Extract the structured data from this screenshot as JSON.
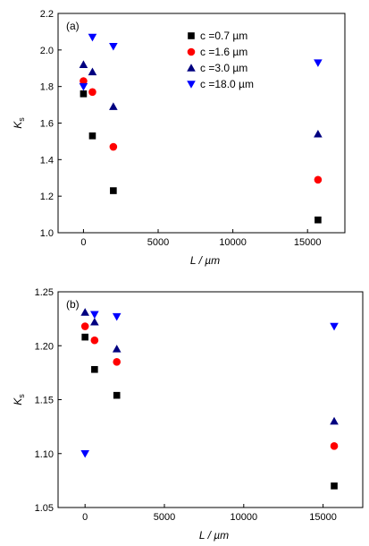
{
  "colors": {
    "c07": "#000000",
    "c16": "#ff0000",
    "c30": "#000080",
    "c180": "#0000ff"
  },
  "chart_data": [
    {
      "type": "scatter",
      "panel_label": "(a)",
      "xlabel": "L / µm",
      "ylabel": "K",
      "ylabel_subscript": "s",
      "xlim": [
        -1700,
        17500
      ],
      "ylim": [
        1.0,
        2.2
      ],
      "xticks": [
        0,
        5000,
        10000,
        15000
      ],
      "xtick_labels": [
        "0",
        "5000",
        "10000",
        "15000"
      ],
      "yticks": [
        1.0,
        1.2,
        1.4,
        1.6,
        1.8,
        2.0,
        2.2
      ],
      "ytick_labels": [
        "1.0",
        "1.2",
        "1.4",
        "1.6",
        "1.8",
        "2.0",
        "2.2"
      ],
      "grid": false,
      "legend_position": "top-center",
      "series": [
        {
          "name": "c =0.7 µm",
          "marker": "square",
          "color": "#000000",
          "x": [
            0,
            600,
            2000,
            15700
          ],
          "y": [
            1.76,
            1.53,
            1.23,
            1.07
          ]
        },
        {
          "name": "c =1.6 µm",
          "marker": "circle",
          "color": "#ff0000",
          "x": [
            0,
            600,
            2000,
            15700
          ],
          "y": [
            1.83,
            1.77,
            1.47,
            1.29
          ]
        },
        {
          "name": "c =3.0 µm",
          "marker": "triangle-up",
          "color": "#000080",
          "x": [
            0,
            600,
            2000,
            15700
          ],
          "y": [
            1.92,
            1.88,
            1.69,
            1.54
          ]
        },
        {
          "name": "c =18.0 µm",
          "marker": "triangle-down",
          "color": "#0000ff",
          "x": [
            0,
            600,
            2000,
            15700
          ],
          "y": [
            1.8,
            2.07,
            2.02,
            1.93
          ]
        }
      ]
    },
    {
      "type": "scatter",
      "panel_label": "(b)",
      "xlabel": "L / µm",
      "ylabel": "K",
      "ylabel_subscript": "s",
      "xlim": [
        -1700,
        17500
      ],
      "ylim": [
        1.05,
        1.25
      ],
      "xticks": [
        0,
        5000,
        10000,
        15000
      ],
      "xtick_labels": [
        "0",
        "5000",
        "10000",
        "15000"
      ],
      "yticks": [
        1.05,
        1.1,
        1.15,
        1.2,
        1.25
      ],
      "ytick_labels": [
        "1.05",
        "1.10",
        "1.15",
        "1.20",
        "1.25"
      ],
      "grid": false,
      "series": [
        {
          "marker": "square",
          "color": "#000000",
          "x": [
            0,
            600,
            2000,
            15700
          ],
          "y": [
            1.208,
            1.178,
            1.154,
            1.07
          ]
        },
        {
          "marker": "circle",
          "color": "#ff0000",
          "x": [
            0,
            600,
            2000,
            15700
          ],
          "y": [
            1.218,
            1.205,
            1.185,
            1.107
          ]
        },
        {
          "marker": "triangle-up",
          "color": "#000080",
          "x": [
            0,
            600,
            2000,
            15700
          ],
          "y": [
            1.231,
            1.222,
            1.197,
            1.13
          ]
        },
        {
          "marker": "triangle-down",
          "color": "#0000ff",
          "x": [
            0,
            600,
            2000,
            15700
          ],
          "y": [
            1.1,
            1.229,
            1.227,
            1.218
          ]
        }
      ]
    }
  ]
}
